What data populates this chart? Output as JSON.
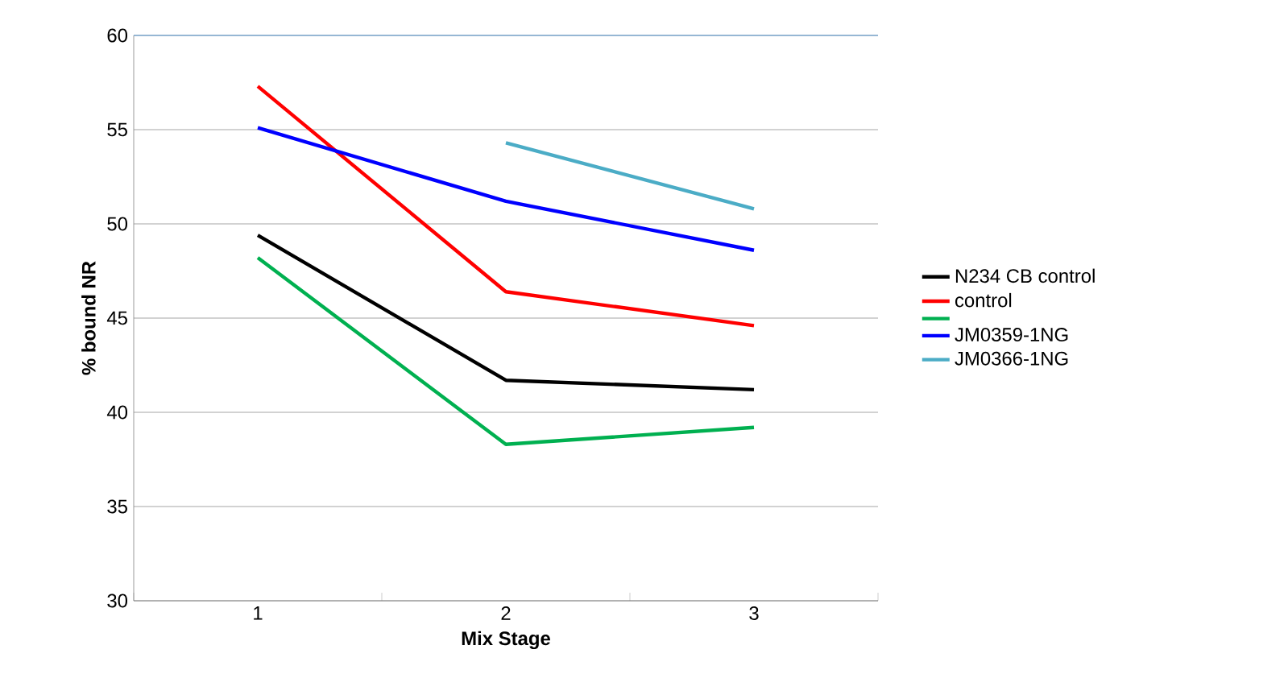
{
  "chart_data": {
    "type": "line",
    "xlabel": "Mix Stage",
    "ylabel": "% bound NR",
    "categories": [
      "1",
      "2",
      "3"
    ],
    "ylim": [
      30,
      60
    ],
    "yticks": [
      30,
      35,
      40,
      45,
      50,
      55,
      60
    ],
    "grid": "y",
    "legend": "right",
    "line_style": "solid",
    "marker": "none",
    "series": [
      {
        "name": "N234 CB control",
        "color": "#000000",
        "values": [
          49.4,
          41.7,
          41.2
        ]
      },
      {
        "name": "control",
        "color": "#ff0000",
        "values": [
          57.3,
          46.4,
          44.6
        ]
      },
      {
        "color": "#00b050",
        "values": [
          48.2,
          38.3,
          39.2
        ]
      },
      {
        "name": "JM0359-1NG",
        "color": "#0000ff",
        "values": [
          55.1,
          51.2,
          48.6
        ]
      },
      {
        "name": "JM0366-1NG",
        "color": "#4bacc6",
        "values": [
          null,
          54.3,
          50.8
        ]
      }
    ]
  }
}
